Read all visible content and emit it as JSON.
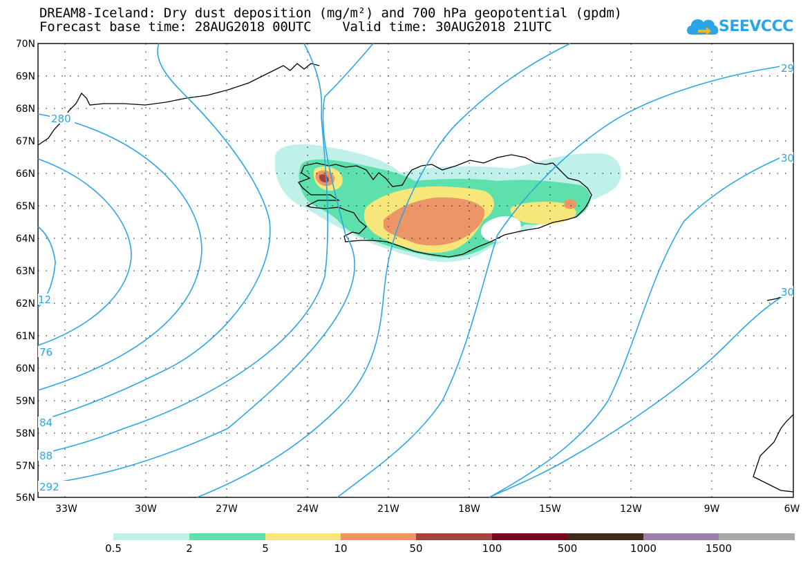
{
  "title": {
    "line1": "DREAM8-Iceland: Dry dust deposition (mg/m²) and 700 hPa geopotential (gpdm)",
    "line2": "Forecast base time: 28AUG2018 00UTC    Valid time: 30AUG2018 21UTC"
  },
  "logo": {
    "text": "SEEVCCC",
    "icon": "cloud-arrow-icon",
    "color": "#2aa6e6"
  },
  "map": {
    "projection": "lat-lon",
    "lon_range": [
      -34,
      -6
    ],
    "lat_range": [
      56,
      70
    ],
    "lat_labels": [
      "70N",
      "69N",
      "68N",
      "67N",
      "66N",
      "65N",
      "64N",
      "63N",
      "62N",
      "61N",
      "60N",
      "59N",
      "58N",
      "57N",
      "56N"
    ],
    "lon_labels": [
      "33W",
      "30W",
      "27W",
      "24W",
      "21W",
      "18W",
      "15W",
      "12W",
      "9W",
      "6W"
    ],
    "contour_color": "#2aa6e6",
    "contour_labels": [
      "280",
      "12",
      "76",
      "84",
      "88",
      "292",
      "29",
      "30",
      "30"
    ]
  },
  "legend": {
    "colors": [
      "#bff0ea",
      "#5ee0ad",
      "#f7e77a",
      "#ec9668",
      "#a4423b",
      "#7a0521",
      "#3f2a1d",
      "#9a7fab",
      "#a8a8a8"
    ],
    "labels": [
      "0.5",
      "2",
      "5",
      "10",
      "50",
      "100",
      "500",
      "1000",
      "1500"
    ]
  }
}
